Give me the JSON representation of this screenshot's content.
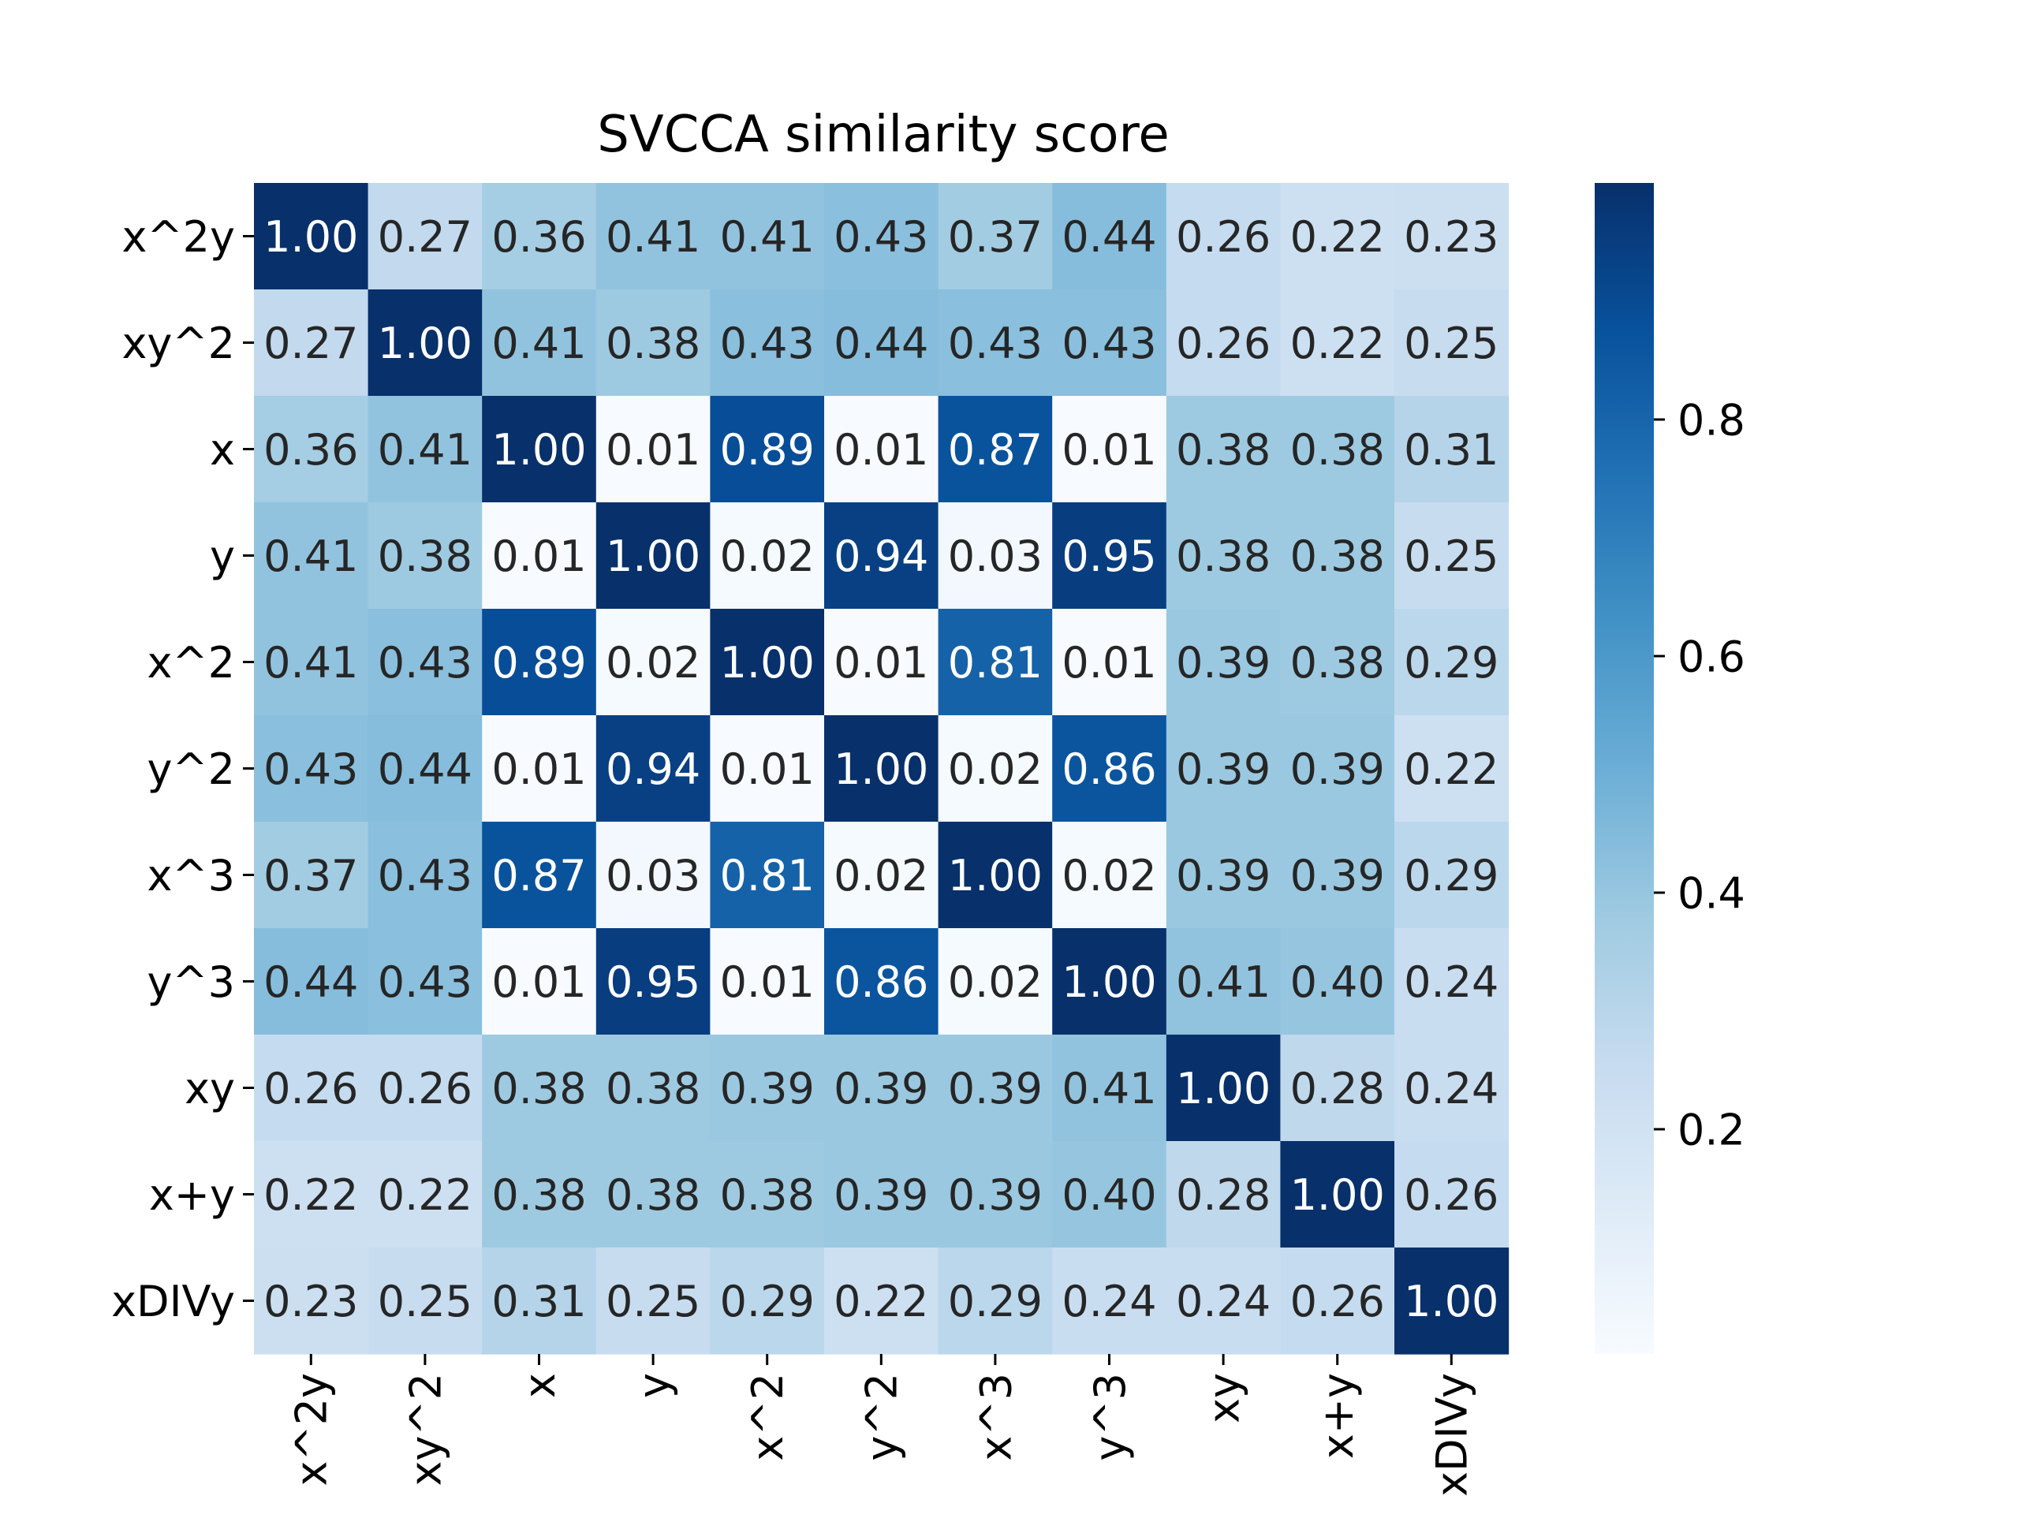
{
  "chart_data": {
    "type": "heatmap",
    "title": "SVCCA similarity score",
    "xlabel": "",
    "ylabel": "",
    "x_categories": [
      "x^2y",
      "xy^2",
      "x",
      "y",
      "x^2",
      "y^2",
      "x^3",
      "y^3",
      "xy",
      "x+y",
      "xDIVy"
    ],
    "y_categories": [
      "x^2y",
      "xy^2",
      "x",
      "y",
      "x^2",
      "y^2",
      "x^3",
      "y^3",
      "xy",
      "x+y",
      "xDIVy"
    ],
    "values": [
      [
        1.0,
        0.27,
        0.36,
        0.41,
        0.41,
        0.43,
        0.37,
        0.44,
        0.26,
        0.22,
        0.23
      ],
      [
        0.27,
        1.0,
        0.41,
        0.38,
        0.43,
        0.44,
        0.43,
        0.43,
        0.26,
        0.22,
        0.25
      ],
      [
        0.36,
        0.41,
        1.0,
        0.01,
        0.89,
        0.01,
        0.87,
        0.01,
        0.38,
        0.38,
        0.31
      ],
      [
        0.41,
        0.38,
        0.01,
        1.0,
        0.02,
        0.94,
        0.03,
        0.95,
        0.38,
        0.38,
        0.25
      ],
      [
        0.41,
        0.43,
        0.89,
        0.02,
        1.0,
        0.01,
        0.81,
        0.01,
        0.39,
        0.38,
        0.29
      ],
      [
        0.43,
        0.44,
        0.01,
        0.94,
        0.01,
        1.0,
        0.02,
        0.86,
        0.39,
        0.39,
        0.22
      ],
      [
        0.37,
        0.43,
        0.87,
        0.03,
        0.81,
        0.02,
        1.0,
        0.02,
        0.39,
        0.39,
        0.29
      ],
      [
        0.44,
        0.43,
        0.01,
        0.95,
        0.01,
        0.86,
        0.02,
        1.0,
        0.41,
        0.4,
        0.24
      ],
      [
        0.26,
        0.26,
        0.38,
        0.38,
        0.39,
        0.39,
        0.39,
        0.41,
        1.0,
        0.28,
        0.24
      ],
      [
        0.22,
        0.22,
        0.38,
        0.38,
        0.38,
        0.39,
        0.39,
        0.4,
        0.28,
        1.0,
        0.26
      ],
      [
        0.23,
        0.25,
        0.31,
        0.25,
        0.29,
        0.22,
        0.29,
        0.24,
        0.24,
        0.26,
        1.0
      ]
    ],
    "value_format": "0.00",
    "colormap": "Blues",
    "colorbar": {
      "range": [
        0.01,
        1.0
      ],
      "ticks": [
        0.2,
        0.4,
        0.6,
        0.8
      ],
      "tick_labels": [
        "0.2",
        "0.4",
        "0.6",
        "0.8"
      ],
      "placement": "right"
    },
    "grid": false
  },
  "colors": {
    "background": "#ffffff",
    "text_dark": "#262626",
    "text_light": "#ffffff",
    "axis": "#000000"
  }
}
